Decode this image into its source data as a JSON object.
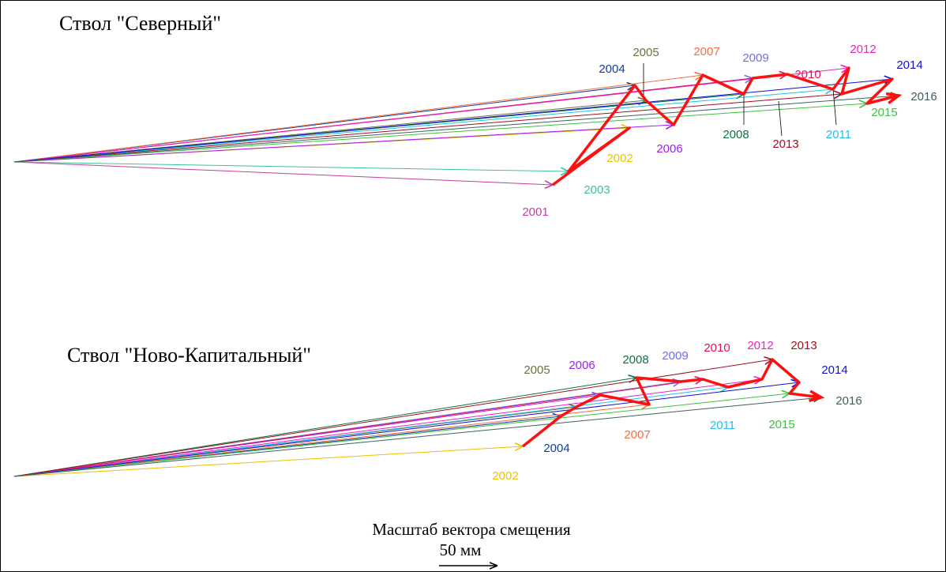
{
  "panels": [
    {
      "title": "Ствол \"Северный\"",
      "vectors": [
        {
          "label": "2001",
          "color": "#c0409a"
        },
        {
          "label": "2002",
          "color": "#f0c000"
        },
        {
          "label": "2003",
          "color": "#40c0a0"
        },
        {
          "label": "2004",
          "color": "#1040a0"
        },
        {
          "label": "2005",
          "color": "#707040"
        },
        {
          "label": "2006",
          "color": "#a020f0"
        },
        {
          "label": "2007",
          "color": "#f07040"
        },
        {
          "label": "2008",
          "color": "#107040"
        },
        {
          "label": "2009",
          "color": "#7070e0"
        },
        {
          "label": "2010",
          "color": "#e0105a"
        },
        {
          "label": "2011",
          "color": "#20c0f0"
        },
        {
          "label": "2012",
          "color": "#f020c0"
        },
        {
          "label": "2013",
          "color": "#a01020"
        },
        {
          "label": "2014",
          "color": "#1010d0"
        },
        {
          "label": "2015",
          "color": "#40c040"
        },
        {
          "label": "2016",
          "color": "#406060"
        }
      ]
    },
    {
      "title": "Ствол \"Ново-Капитальный\"",
      "vectors": [
        {
          "label": "2002",
          "color": "#f0c000"
        },
        {
          "label": "2004",
          "color": "#1040a0"
        },
        {
          "label": "2005",
          "color": "#707040"
        },
        {
          "label": "2006",
          "color": "#a020f0"
        },
        {
          "label": "2007",
          "color": "#f07040"
        },
        {
          "label": "2008",
          "color": "#107040"
        },
        {
          "label": "2009",
          "color": "#7070e0"
        },
        {
          "label": "2010",
          "color": "#e0105a"
        },
        {
          "label": "2011",
          "color": "#20c0f0"
        },
        {
          "label": "2012",
          "color": "#f020c0"
        },
        {
          "label": "2013",
          "color": "#a01020"
        },
        {
          "label": "2014",
          "color": "#1010d0"
        },
        {
          "label": "2015",
          "color": "#40c040"
        },
        {
          "label": "2016",
          "color": "#406060"
        }
      ]
    }
  ],
  "scale": {
    "caption": "Масштаб вектора смещения",
    "length": "50 мм"
  }
}
